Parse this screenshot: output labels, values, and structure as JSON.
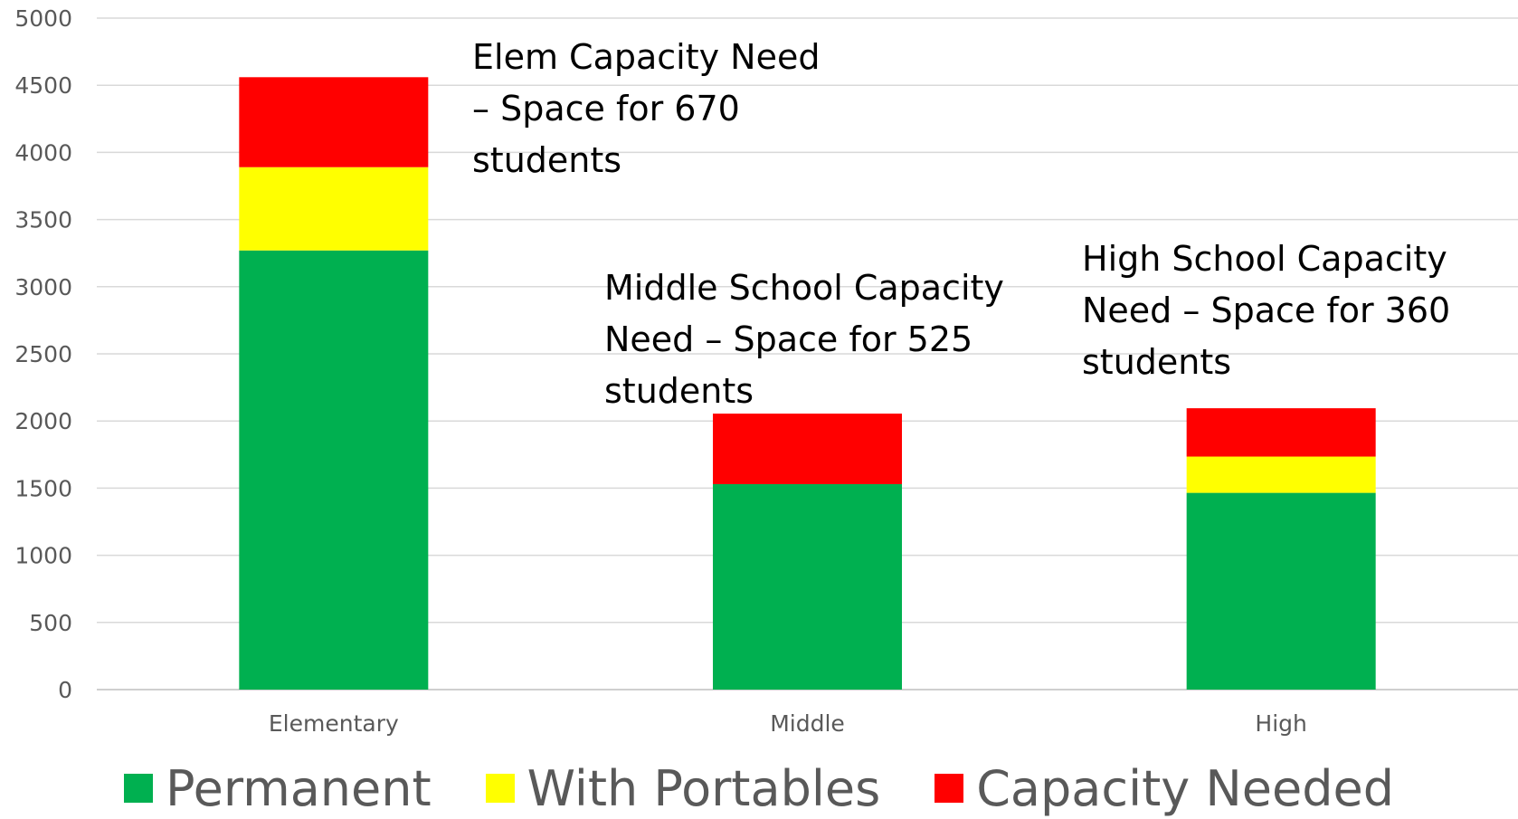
{
  "chart_data": {
    "type": "bar",
    "stacked": true,
    "categories": [
      "Elementary",
      "Middle",
      "High"
    ],
    "series": [
      {
        "name": "Permanent",
        "color": "#00b050",
        "values": [
          3270,
          1530,
          1465
        ]
      },
      {
        "name": "With Portables",
        "color": "#ffff00",
        "values": [
          620,
          0,
          270
        ]
      },
      {
        "name": "Capacity Needed",
        "color": "#ff0000",
        "values": [
          670,
          525,
          360
        ]
      }
    ],
    "ylim": [
      0,
      5000
    ],
    "yticks": [
      0,
      500,
      1000,
      1500,
      2000,
      2500,
      3000,
      3500,
      4000,
      4500,
      5000
    ],
    "grid": true,
    "legend": "bottom",
    "annotations": [
      {
        "category": "Elementary",
        "text": "Elem Capacity Need\n– Space for 670\nstudents"
      },
      {
        "category": "Middle",
        "text": "Middle School Capacity\nNeed – Space for 525\nstudents"
      },
      {
        "category": "High",
        "text": "High School Capacity\nNeed – Space for 360\nstudents"
      }
    ]
  }
}
